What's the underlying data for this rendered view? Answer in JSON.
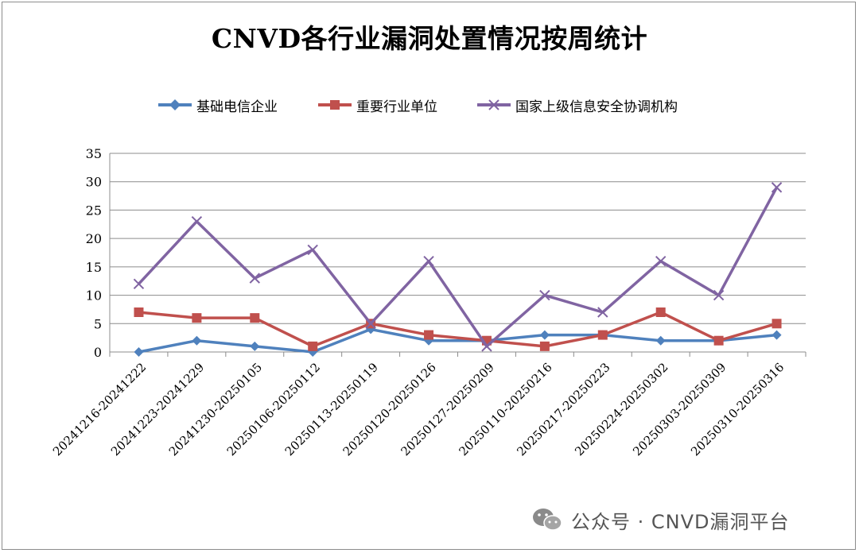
{
  "chart_data": {
    "type": "line",
    "title": "CNVD各行业漏洞处置情况按周统计",
    "categories": [
      "20241216-20241222",
      "20241223-20241229",
      "20241230-20250105",
      "20250106-20250112",
      "20250113-20250119",
      "20250120-20250126",
      "20250127-20250209",
      "20250110-20250216",
      "20250217-20250223",
      "20250224-20250302",
      "20250303-20250309",
      "20250310-20250316"
    ],
    "series": [
      {
        "name": "基础电信企业",
        "color": "#4F81BD",
        "marker": "diamond",
        "values": [
          0,
          2,
          1,
          0,
          4,
          2,
          2,
          3,
          3,
          2,
          2,
          3
        ]
      },
      {
        "name": "重要行业单位",
        "color": "#C0504D",
        "marker": "square",
        "values": [
          7,
          6,
          6,
          1,
          5,
          3,
          2,
          1,
          3,
          7,
          2,
          5
        ]
      },
      {
        "name": "国家上级信息安全协调机构",
        "color": "#8064A2",
        "marker": "x",
        "values": [
          12,
          23,
          13,
          18,
          5,
          16,
          1,
          10,
          7,
          16,
          10,
          29
        ]
      }
    ],
    "ylim": [
      0,
      35
    ],
    "yticks": [
      0,
      5,
      10,
      15,
      20,
      25,
      30,
      35
    ],
    "grid": true,
    "legend_position": "top"
  },
  "watermark": {
    "text": "公众号 · CNVD漏洞平台",
    "icon": "wechat-icon"
  }
}
